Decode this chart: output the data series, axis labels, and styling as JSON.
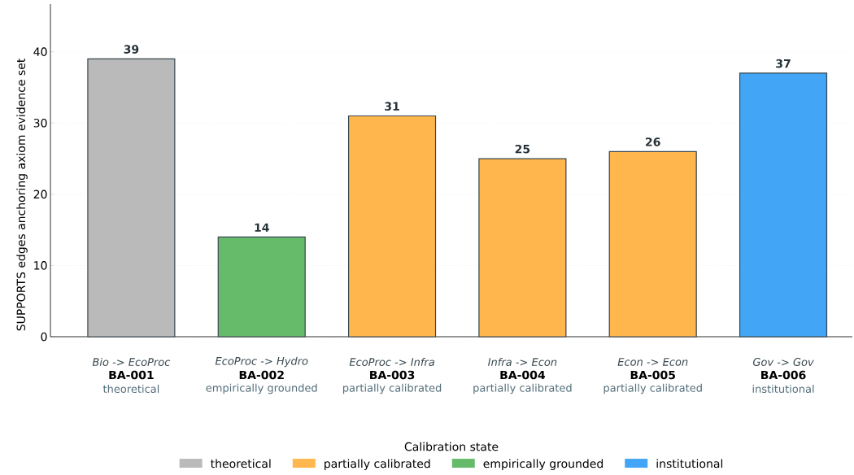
{
  "chart_data": {
    "type": "bar",
    "ylabel": "SUPPORTS edges anchoring axiom evidence set",
    "legend_title": "Calibration state",
    "categories": [
      "BA-001",
      "BA-002",
      "BA-003",
      "BA-004",
      "BA-005",
      "BA-006"
    ],
    "annotations": [
      "Bio -> EcoProc",
      "theoretical",
      "EcoProc -> Hydro",
      "empirically grounded",
      "EcoProc -> Infra",
      "partially calibrated",
      "Infra -> Econ",
      "partially calibrated",
      "Econ -> Econ",
      "partially calibrated",
      "Gov -> Gov",
      "institutional"
    ],
    "series": [
      {
        "name": "theoretical",
        "color": "#bababa",
        "values": [
          39,
          null,
          null,
          null,
          null,
          null
        ]
      },
      {
        "name": "partially calibrated",
        "color": "#ffb74d",
        "values": [
          null,
          null,
          31,
          25,
          26,
          null
        ]
      },
      {
        "name": "empirically grounded",
        "color": "#66bb6a",
        "values": [
          null,
          14,
          null,
          null,
          null,
          null
        ]
      },
      {
        "name": "institutional",
        "color": "#42a5f5",
        "values": [
          null,
          null,
          null,
          null,
          null,
          37
        ]
      }
    ],
    "ylim": [
      0,
      46.7
    ],
    "yticks": [
      0,
      10,
      20,
      30,
      40
    ],
    "grid": "y",
    "legend": "bottom",
    "data_labels": true
  }
}
